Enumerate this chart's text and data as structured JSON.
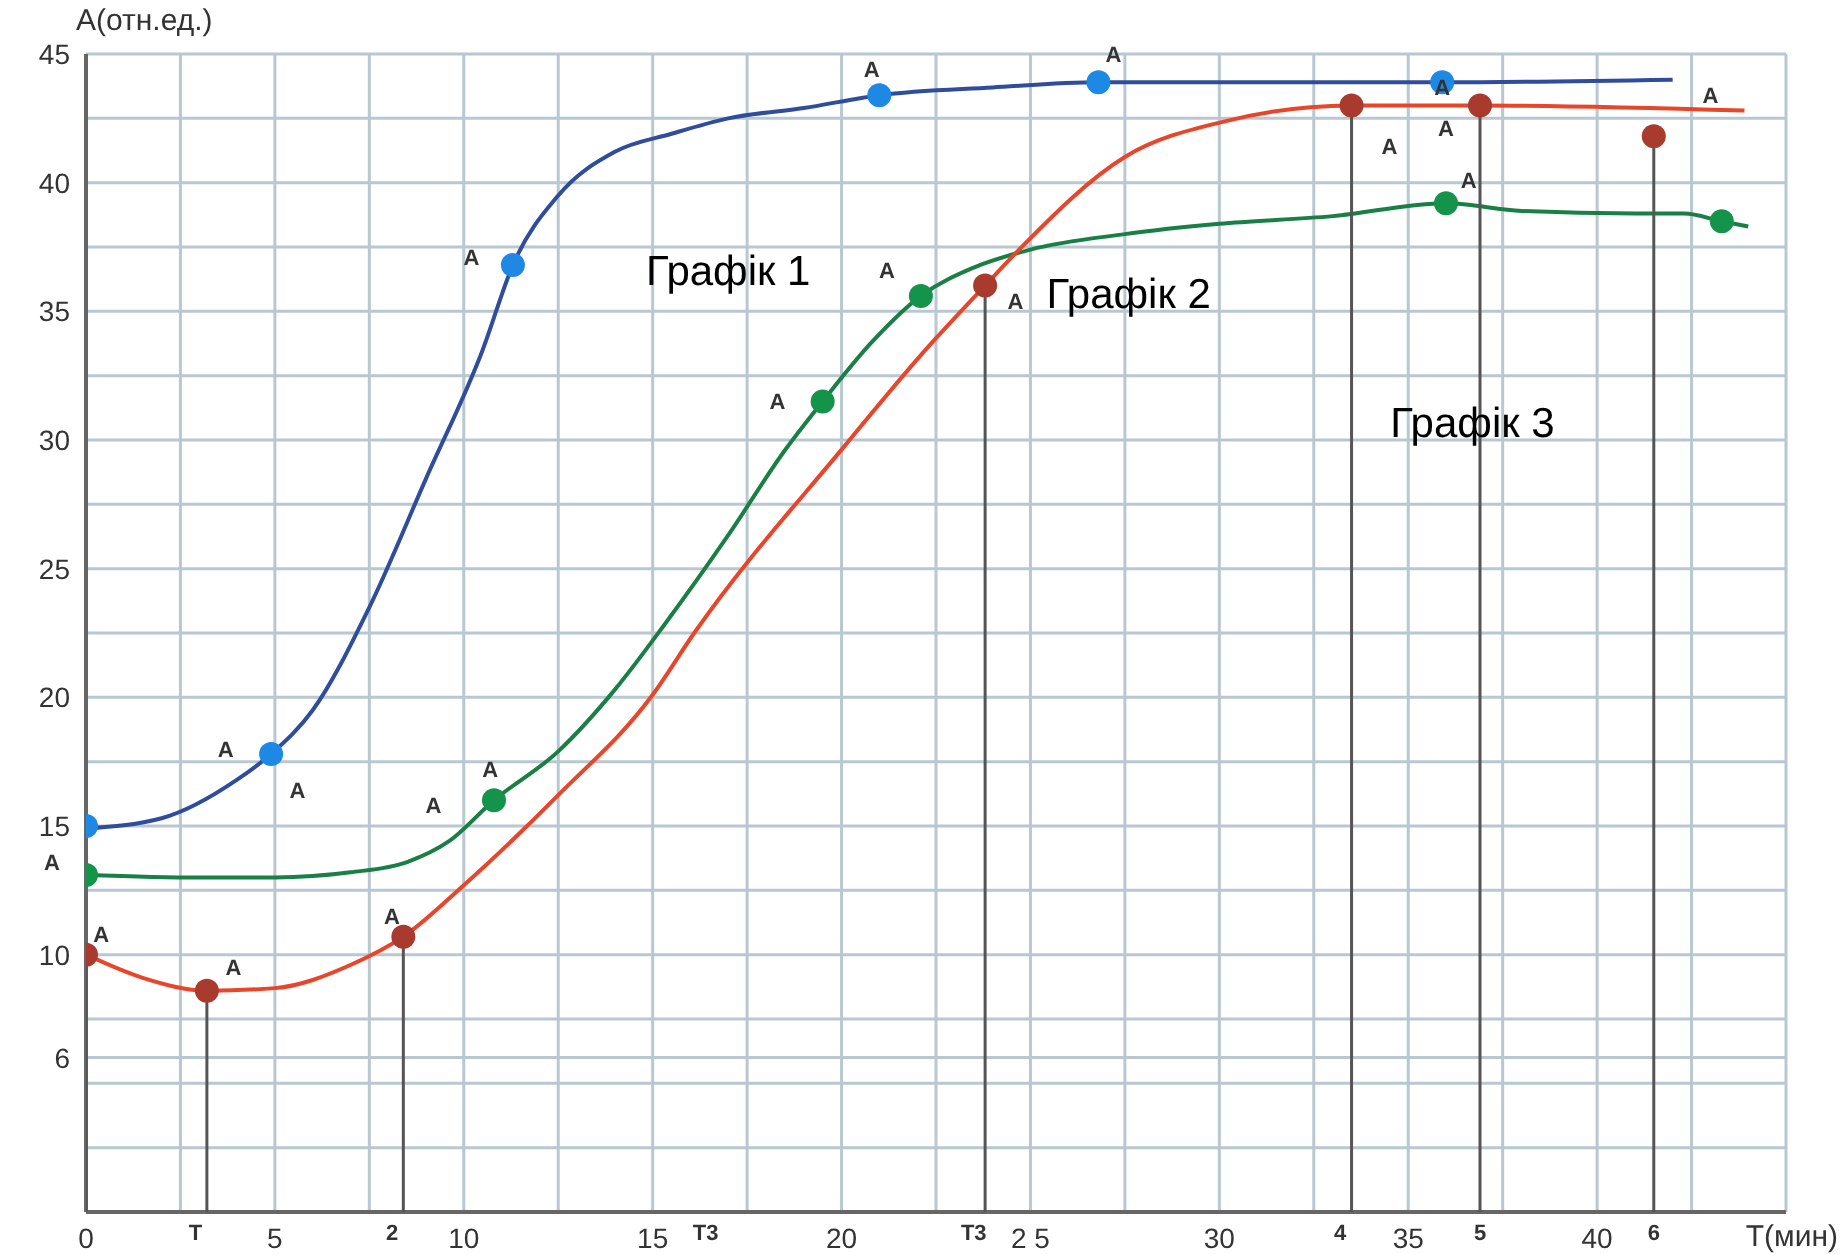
{
  "chart_data": {
    "type": "line",
    "xlabel": "T(мин)",
    "ylabel": "A(отн.ед.)",
    "xlim": [
      0,
      45
    ],
    "ylim": [
      0,
      45
    ],
    "xticks": [
      0,
      {
        "value": 2.5,
        "label": null
      },
      5,
      {
        "value": 7.5,
        "label": null
      },
      10,
      {
        "value": 12.5,
        "label": null
      },
      15,
      {
        "value": 17.5,
        "label": null
      },
      20,
      {
        "value": 22.5,
        "label": null
      },
      {
        "value": 25,
        "label": "2 5"
      },
      {
        "value": 27.5,
        "label": null
      },
      30,
      {
        "value": 32.5,
        "label": null
      },
      35,
      {
        "value": 37.5,
        "label": null
      },
      40,
      {
        "value": 42.5,
        "label": null
      },
      {
        "value": 45,
        "label": null
      }
    ],
    "yticks": [
      {
        "value": 0,
        "label": null
      },
      {
        "value": 2.5,
        "label": null
      },
      {
        "value": 5,
        "label": null
      },
      6,
      {
        "value": 7.5,
        "label": null
      },
      10,
      {
        "value": 12.5,
        "label": null
      },
      15,
      {
        "value": 17.5,
        "label": null
      },
      20,
      {
        "value": 22.5,
        "label": null
      },
      25,
      {
        "value": 27.5,
        "label": null
      },
      30,
      {
        "value": 32.5,
        "label": null
      },
      35,
      {
        "value": 37.5,
        "label": null
      },
      40,
      {
        "value": 42.5,
        "label": null
      },
      45
    ],
    "grid": true,
    "series": [
      {
        "marker": "none",
        "color": "#2f4d9c",
        "x": [
          0,
          2,
          4,
          4.9,
          6,
          7.5,
          9,
          10.5,
          11.3,
          12.5,
          14,
          15.5,
          17,
          19,
          21,
          24,
          26.8,
          30,
          35.9,
          42
        ],
        "values": [
          14.9,
          15.3,
          16.8,
          17.8,
          19.5,
          23.5,
          28.5,
          33.5,
          36.8,
          39.5,
          41.2,
          41.9,
          42.5,
          42.9,
          43.4,
          43.7,
          43.9,
          43.9,
          43.9,
          44.0
        ]
      },
      {
        "type": "scatter",
        "marker": "circle",
        "color": "#1e88e5",
        "x": [
          0,
          4.9,
          11.3,
          21,
          26.8,
          35.9
        ],
        "values": [
          15,
          17.8,
          36.8,
          43.4,
          43.9,
          43.9
        ]
      },
      {
        "marker": "none",
        "color": "#1a7f45",
        "x": [
          0,
          3,
          5,
          7,
          8.5,
          9.6,
          10.8,
          12.5,
          14,
          15.3,
          17,
          18.5,
          19.5,
          20.8,
          22.1,
          23.5,
          25,
          27.5,
          30,
          33,
          36,
          38,
          41,
          42.3,
          43.3,
          44
        ],
        "values": [
          13.1,
          13.0,
          13.0,
          13.2,
          13.6,
          14.4,
          16.0,
          17.9,
          20.3,
          22.8,
          26.3,
          29.6,
          31.5,
          33.8,
          35.6,
          36.7,
          37.4,
          38.0,
          38.4,
          38.7,
          39.2,
          38.9,
          38.8,
          38.8,
          38.5,
          38.3
        ]
      },
      {
        "type": "scatter",
        "marker": "circle",
        "color": "#14934a",
        "x": [
          0,
          10.8,
          19.5,
          22.1,
          36.0,
          43.3
        ],
        "values": [
          13.1,
          16.0,
          31.5,
          35.6,
          39.2,
          38.5
        ]
      },
      {
        "marker": "none",
        "color": "#e8452a",
        "x": [
          0,
          1.5,
          3.2,
          5,
          7,
          8.4,
          10,
          12.5,
          15,
          16.1,
          20.1,
          22.1,
          23.8,
          24.7,
          27.5,
          30.2,
          33.5,
          36.9,
          43.9
        ],
        "values": [
          10,
          9.1,
          8.6,
          8.7,
          9.6,
          10.7,
          12.7,
          16.2,
          20.1,
          22.5,
          29.8,
          33.3,
          36.0,
          37.4,
          41.0,
          42.4,
          43.0,
          43.0,
          42.8
        ]
      },
      {
        "type": "lollipop",
        "marker": "circle",
        "color": "#a83a2e",
        "x": [
          0,
          3.2,
          8.4,
          23.8,
          33.5,
          36.9,
          41.5
        ],
        "values": [
          10,
          8.6,
          10.7,
          36.0,
          43.0,
          43.0,
          41.8
        ]
      }
    ],
    "annotations": [
      "Графік 1",
      "Графік 2",
      "Графік 3",
      "A",
      "A",
      "A",
      "A",
      "A",
      "A",
      "A",
      "A",
      "A",
      "A",
      "A",
      "A",
      "A",
      "A",
      "A",
      "A",
      "A",
      "A",
      "A",
      "Т",
      "2",
      "Т3",
      "Т3",
      "4",
      "5",
      "6"
    ]
  }
}
